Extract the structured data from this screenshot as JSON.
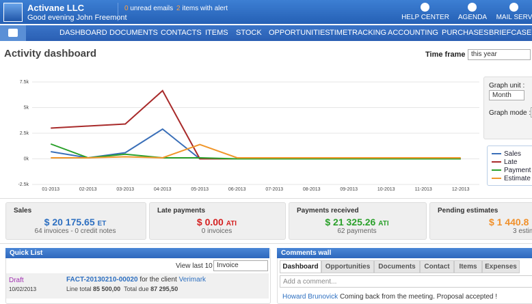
{
  "header": {
    "company": "Activane LLC",
    "greeting": "Good evening John Freemont",
    "emails_count": "0",
    "emails_text": "unread emails",
    "alerts_count": "2",
    "alerts_text": "items with alert",
    "links": [
      "HELP CENTER",
      "AGENDA",
      "MAIL SERV"
    ]
  },
  "nav": [
    "DASHBOARD",
    "DOCUMENTS",
    "CONTACTS",
    "ITEMS",
    "STOCK",
    "OPPORTUNITIES",
    "TIMETRACKING",
    "ACCOUNTING",
    "PURCHASES",
    "BRIEFCASE"
  ],
  "page_title": "Activity dashboard",
  "time_frame": {
    "label": "Time frame :",
    "value": "this year"
  },
  "graph_options": {
    "unit_label": "Graph unit :",
    "unit_value": "Month",
    "mode_label": "Graph mode :"
  },
  "chart_data": {
    "type": "line",
    "categories": [
      "01-2013",
      "02-2013",
      "03-2013",
      "04-2013",
      "05-2013",
      "06-2013",
      "07-2013",
      "08-2013",
      "09-2013",
      "10-2013",
      "11-2013",
      "12-2013"
    ],
    "series": [
      {
        "name": "Sales",
        "color": "#3a6fb8",
        "values": [
          700,
          100,
          600,
          2900,
          0,
          0,
          0,
          0,
          0,
          0,
          0,
          0
        ]
      },
      {
        "name": "Late",
        "color": "#a82a2a",
        "values": [
          3000,
          3200,
          3400,
          6650,
          0,
          0,
          0,
          0,
          0,
          0,
          0,
          0
        ]
      },
      {
        "name": "Payment",
        "color": "#2aa02a",
        "values": [
          1450,
          100,
          450,
          100,
          100,
          0,
          0,
          0,
          0,
          0,
          0,
          0
        ]
      },
      {
        "name": "Estimate",
        "color": "#f0962a",
        "values": [
          100,
          100,
          200,
          100,
          1400,
          100,
          100,
          100,
          100,
          100,
          100,
          100
        ]
      }
    ],
    "ylim": [
      -2500,
      7500
    ],
    "yticks": [
      {
        "value": -2500,
        "label": "-2.5k"
      },
      {
        "value": 0,
        "label": "0k"
      },
      {
        "value": 2500,
        "label": "2.5k"
      },
      {
        "value": 5000,
        "label": "5k"
      },
      {
        "value": 7500,
        "label": "7.5k"
      }
    ],
    "grid": true
  },
  "stats": [
    {
      "title": "Sales",
      "amount": "$ 20 175.65",
      "suffix": "ET",
      "detail": "64 invoices - 0 credit notes",
      "color": "#2d6fc0"
    },
    {
      "title": "Late payments",
      "amount": "$ 0.00",
      "suffix": "ATI",
      "detail": "0 invoices",
      "color": "#d42020"
    },
    {
      "title": "Payments received",
      "amount": "$ 21 325.26",
      "suffix": "ATI",
      "detail": "62 payments",
      "color": "#2aa02a"
    },
    {
      "title": "Pending estimates",
      "amount": "$ 1 440.8",
      "detail": "3 estim",
      "color": "#f0902a"
    }
  ],
  "quick_list": {
    "title": "Quick List",
    "view_label": "View last 10",
    "select": "Invoice",
    "row": {
      "status": "Draft",
      "date": "10/02/2013",
      "ref": "FACT-20130210-00020",
      "for_text": "for the client",
      "client": "Verimark",
      "line_total_label": "Line total",
      "line_total": "85 500,00",
      "total_due_label": "Total due",
      "total_due": "87 295,50"
    }
  },
  "comments_wall": {
    "title": "Comments wall",
    "tabs": [
      "Dashboard",
      "Opportunities",
      "Documents",
      "Contact",
      "Items",
      "Expenses"
    ],
    "placeholder": "Add a comment...",
    "comment": {
      "author": "Howard Brunovick",
      "text": "Coming back from the meeting. Proposal accepted !"
    }
  }
}
